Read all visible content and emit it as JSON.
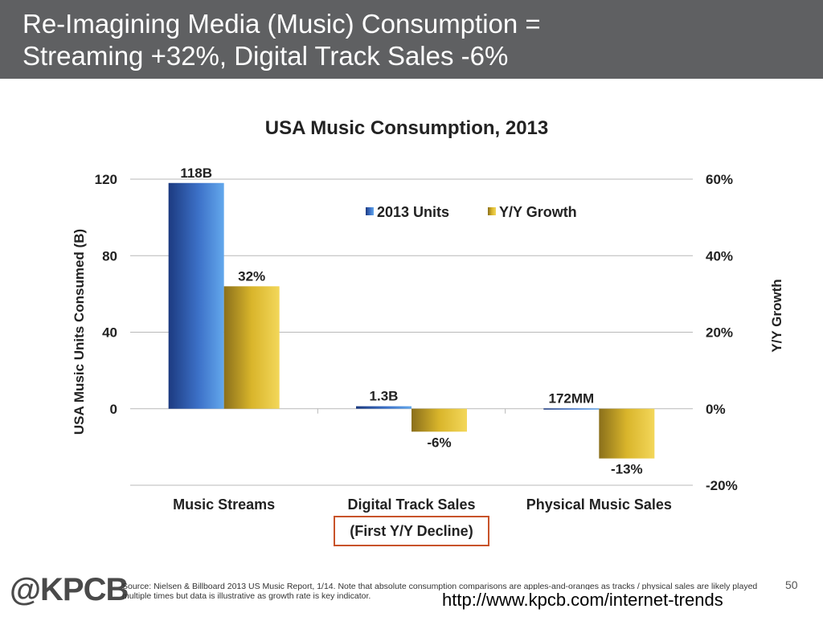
{
  "header": {
    "line1": "Re-Imagining Media (Music) Consumption =",
    "line2": "Streaming +32%, Digital Track Sales -6%"
  },
  "chart_data": {
    "type": "bar",
    "title": "USA Music Consumption, 2013",
    "categories": [
      "Music Streams",
      "Digital Track Sales",
      "Physical Music Sales"
    ],
    "category_note": "(First Y/Y Decline)",
    "series": [
      {
        "name": "2013 Units",
        "axis": "left",
        "values": [
          118,
          1.3,
          0.172
        ],
        "labels": [
          "118B",
          "1.3B",
          "172MM"
        ],
        "color": "#3d72c9"
      },
      {
        "name": "Y/Y Growth",
        "axis": "right",
        "values": [
          32,
          -6,
          -13
        ],
        "labels": [
          "32%",
          "-6%",
          "-13%"
        ],
        "color": "#d9b52b"
      }
    ],
    "ylabel": "USA Music Units Consumed (B)",
    "y2label": "Y/Y Growth",
    "ylim": [
      -40,
      120
    ],
    "y2lim": [
      -20,
      60
    ],
    "yticks": [
      "120",
      "80",
      "40",
      "0"
    ],
    "y2ticks": [
      "60%",
      "40%",
      "20%",
      "0%",
      "-20%"
    ],
    "legend": "top-center",
    "grid": true
  },
  "footer": {
    "logo": "@KPCB",
    "source": "Source: Nielsen & Billboard 2013 US Music Report, 1/14. Note that absolute consumption comparisons are apples-and-oranges as tracks / physical sales are likely played multiple times but data is illustrative as growth rate is key indicator.",
    "page": "50",
    "url": "http://www.kpcb.com/internet-trends"
  }
}
